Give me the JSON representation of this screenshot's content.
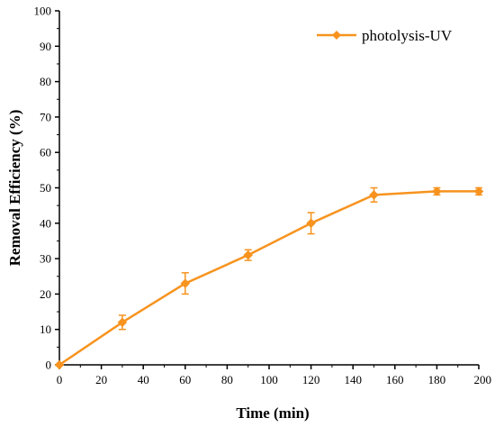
{
  "chart_data": {
    "type": "line",
    "title": "",
    "xlabel": "Time (min)",
    "ylabel": "Removal Efficiency (%)",
    "xlim": [
      0,
      200
    ],
    "ylim": [
      0,
      100
    ],
    "xticks": [
      0,
      20,
      40,
      60,
      80,
      100,
      120,
      140,
      160,
      180,
      200
    ],
    "yticks": [
      0,
      10,
      20,
      30,
      40,
      50,
      60,
      70,
      80,
      90,
      100
    ],
    "grid": false,
    "legend_position": "top-right",
    "series": [
      {
        "name": "photolysis-UV",
        "color": "#f7931e",
        "marker": "diamond",
        "x": [
          0,
          30,
          60,
          90,
          120,
          150,
          180,
          200
        ],
        "y": [
          0,
          12,
          23,
          31,
          40,
          48,
          49,
          49
        ],
        "error": [
          0,
          2,
          3,
          1.5,
          3,
          2,
          1,
          1
        ]
      }
    ]
  }
}
